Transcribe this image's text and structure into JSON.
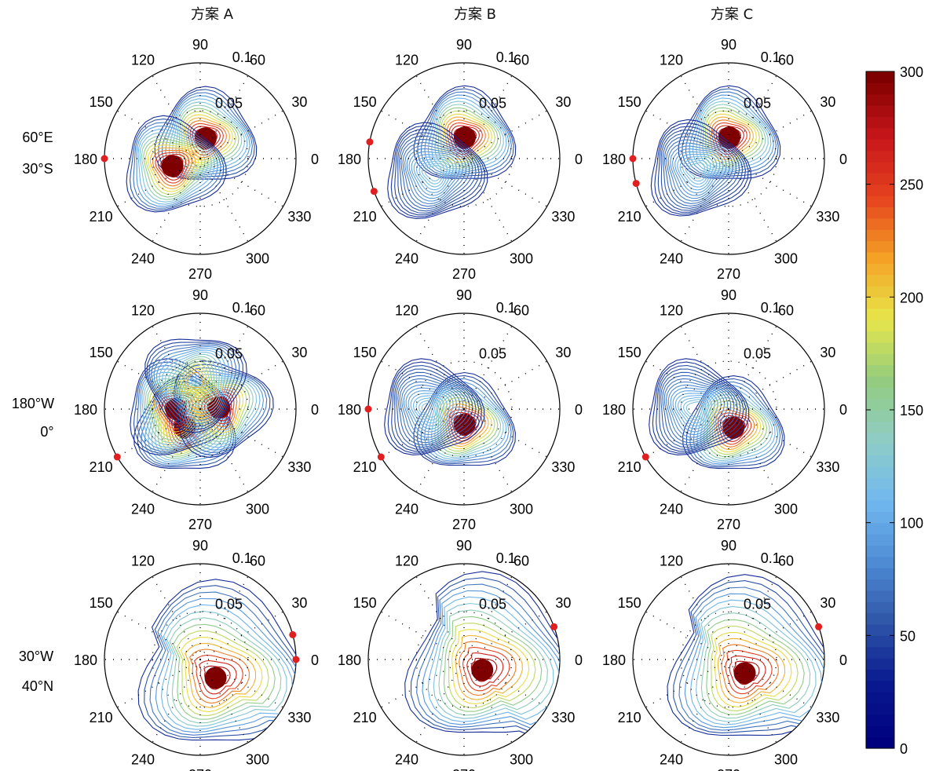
{
  "figure": {
    "column_titles": [
      "方案  A",
      "方案  B",
      "方案  C"
    ],
    "row_labels": [
      [
        "60°E",
        "30°S"
      ],
      [
        "180°W",
        "0°"
      ],
      [
        "30°W",
        "40°N"
      ]
    ]
  },
  "chart_data": {
    "type": "polar-contour",
    "angle_ticks": [
      "0",
      "30",
      "60",
      "90",
      "120",
      "150",
      "180",
      "210",
      "240",
      "270",
      "300",
      "330"
    ],
    "radial_ticks": [
      "0.05",
      "0.1"
    ],
    "radial_values": [
      0.05,
      0.1
    ],
    "colorbar": {
      "colormap": "jet",
      "range": [
        0,
        300
      ],
      "ticks": [
        "0",
        "50",
        "100",
        "150",
        "200",
        "250",
        "300"
      ],
      "tick_values": [
        0,
        50,
        100,
        150,
        200,
        250,
        300
      ],
      "colors": [
        "#00007f",
        "#0a1a8f",
        "#2f56a8",
        "#4f8cd4",
        "#71b9ef",
        "#8fccc6",
        "#93cc7e",
        "#e7e64a",
        "#f4a326",
        "#e6431f",
        "#c8161b",
        "#7f0000"
      ]
    },
    "panels": [
      {
        "row": 0,
        "col": 0,
        "column": "方案  A",
        "row_label": "60°E 30°S",
        "peak_color": "#7f0000",
        "blobs": [
          {
            "angle_deg": 75,
            "r": 0.022,
            "max": 300
          },
          {
            "angle_deg": 195,
            "r": 0.03,
            "max": 300
          }
        ],
        "red_marker_angles_deg": [
          180
        ]
      },
      {
        "row": 0,
        "col": 1,
        "column": "方案  B",
        "row_label": "60°E 30°S",
        "peak_color": "#7f0000",
        "blobs": [
          {
            "angle_deg": 88,
            "r": 0.022,
            "max": 300
          },
          {
            "angle_deg": 205,
            "r": 0.035,
            "max": 100
          }
        ],
        "red_marker_angles_deg": [
          170,
          200
        ]
      },
      {
        "row": 0,
        "col": 2,
        "column": "方案  C",
        "row_label": "60°E 30°S",
        "peak_color": "#7f0000",
        "blobs": [
          {
            "angle_deg": 88,
            "r": 0.022,
            "max": 300
          },
          {
            "angle_deg": 200,
            "r": 0.035,
            "max": 100
          }
        ],
        "red_marker_angles_deg": [
          180,
          195
        ]
      },
      {
        "row": 1,
        "col": 0,
        "column": "方案  A",
        "row_label": "180°W 0°",
        "peak_color": "#7f0000",
        "blobs": [
          {
            "angle_deg": 230,
            "r": 0.025,
            "max": 300
          },
          {
            "angle_deg": 180,
            "r": 0.025,
            "max": 300
          },
          {
            "angle_deg": 5,
            "r": 0.02,
            "max": 300
          },
          {
            "angle_deg": 100,
            "r": 0.03,
            "max": 200
          }
        ],
        "red_marker_angles_deg": [
          210
        ]
      },
      {
        "row": 1,
        "col": 1,
        "column": "方案  B",
        "row_label": "180°W 0°",
        "peak_color": "#7f0000",
        "blobs": [
          {
            "angle_deg": 272,
            "r": 0.016,
            "max": 300
          },
          {
            "angle_deg": 180,
            "r": 0.035,
            "max": 100
          }
        ],
        "red_marker_angles_deg": [
          180,
          210
        ]
      },
      {
        "row": 1,
        "col": 2,
        "column": "方案  C",
        "row_label": "180°W 0°",
        "peak_color": "#7f0000",
        "blobs": [
          {
            "angle_deg": 285,
            "r": 0.02,
            "max": 300
          },
          {
            "angle_deg": 180,
            "r": 0.035,
            "max": 100
          }
        ],
        "red_marker_angles_deg": [
          210
        ]
      },
      {
        "row": 2,
        "col": 0,
        "column": "方案  A",
        "row_label": "30°W 40°N",
        "peak_color": "#7f0000",
        "blobs": [
          {
            "angle_deg": 310,
            "r": 0.025,
            "max": 300
          }
        ],
        "red_marker_angles_deg": [
          15,
          0
        ]
      },
      {
        "row": 2,
        "col": 1,
        "column": "方案  B",
        "row_label": "30°W 40°N",
        "peak_color": "#7f0000",
        "blobs": [
          {
            "angle_deg": 330,
            "r": 0.022,
            "max": 300
          }
        ],
        "red_marker_angles_deg": [
          20
        ]
      },
      {
        "row": 2,
        "col": 2,
        "column": "方案  C",
        "row_label": "30°W 40°N",
        "peak_color": "#7f0000",
        "blobs": [
          {
            "angle_deg": 320,
            "r": 0.022,
            "max": 300
          }
        ],
        "red_marker_angles_deg": [
          20
        ]
      }
    ]
  }
}
